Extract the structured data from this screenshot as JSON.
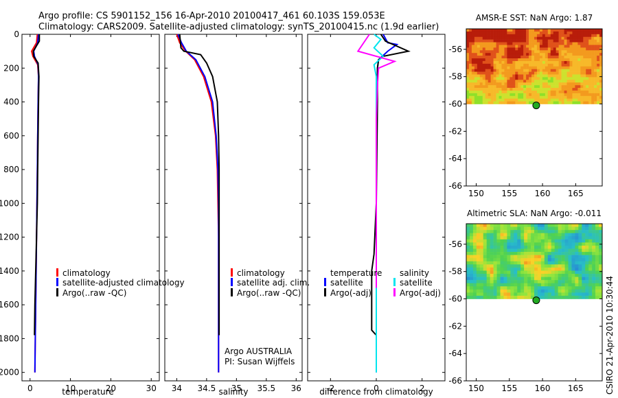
{
  "header": {
    "line1": "Argo profile: CS 5901152_156 16-Apr-2010 20100417_461 60.103S 159.053E",
    "line2": "Climatology: CARS2009. Satellite-adjusted climatology: synTS_20100415.nc (1.9d earlier)"
  },
  "side_stamp": "CSIRO 21-Apr-2010 10:30:44",
  "colors": {
    "climatology": "#ff0000",
    "satellite": "#0000ff",
    "argo": "#000000",
    "sal_satellite": "#00e5ee",
    "sal_argo": "#ff00ff"
  },
  "chart_data": [
    {
      "type": "line",
      "id": "temperature",
      "xlabel": "temperature",
      "ylabel": "",
      "xlim": [
        -2,
        32
      ],
      "ylim": [
        2050,
        0
      ],
      "y_reversed": true,
      "xticks": [
        0,
        10,
        20,
        30
      ],
      "xtick_labels": [
        "0",
        "10",
        "20",
        "30"
      ],
      "yticks": [
        0,
        200,
        400,
        600,
        800,
        1000,
        1200,
        1400,
        1600,
        1800,
        2000
      ],
      "ytick_labels": [
        "0",
        "200",
        "400",
        "600",
        "800",
        "1000",
        "1200",
        "1400",
        "1600",
        "1800",
        "2000"
      ],
      "legend": [
        "climatology",
        "satellite-adjusted climatology",
        "Argo(..raw -QC)"
      ],
      "series": [
        {
          "name": "climatology",
          "color": "#ff0000",
          "points": [
            [
              1.8,
              0
            ],
            [
              1.6,
              50
            ],
            [
              0.4,
              100
            ],
            [
              0.7,
              130
            ],
            [
              1.9,
              180
            ],
            [
              2.1,
              250
            ],
            [
              2.0,
              400
            ],
            [
              1.9,
              600
            ],
            [
              1.8,
              800
            ],
            [
              1.7,
              1000
            ],
            [
              1.6,
              1200
            ],
            [
              1.5,
              1400
            ],
            [
              1.4,
              1600
            ],
            [
              1.3,
              1800
            ],
            [
              1.2,
              2000
            ]
          ]
        },
        {
          "name": "satellite-adjusted climatology",
          "color": "#0000ff",
          "points": [
            [
              2.1,
              0
            ],
            [
              1.9,
              50
            ],
            [
              0.9,
              100
            ],
            [
              1.1,
              130
            ],
            [
              2.0,
              180
            ],
            [
              2.1,
              250
            ],
            [
              2.0,
              400
            ],
            [
              1.9,
              600
            ],
            [
              1.8,
              800
            ],
            [
              1.7,
              1000
            ],
            [
              1.6,
              1200
            ],
            [
              1.5,
              1400
            ],
            [
              1.4,
              1600
            ],
            [
              1.3,
              1800
            ],
            [
              1.2,
              2000
            ]
          ]
        },
        {
          "name": "Argo(..raw -QC)",
          "color": "#000000",
          "points": [
            [
              2.3,
              0
            ],
            [
              2.3,
              40
            ],
            [
              0.8,
              100
            ],
            [
              0.9,
              130
            ],
            [
              2.0,
              170
            ],
            [
              2.2,
              250
            ],
            [
              2.1,
              400
            ],
            [
              2.0,
              600
            ],
            [
              1.9,
              800
            ],
            [
              1.8,
              1000
            ],
            [
              1.6,
              1200
            ],
            [
              1.4,
              1400
            ],
            [
              1.2,
              1600
            ],
            [
              1.1,
              1780
            ]
          ]
        }
      ]
    },
    {
      "type": "line",
      "id": "salinity",
      "xlabel": "salinity",
      "ylabel": "",
      "xlim": [
        33.8,
        36.1
      ],
      "ylim": [
        2050,
        0
      ],
      "y_reversed": true,
      "xticks": [
        34,
        34.5,
        35,
        35.5,
        36
      ],
      "xtick_labels": [
        "34",
        "34.5",
        "35",
        "35.5",
        "36"
      ],
      "legend": [
        "climatology",
        "satellite adj. clim.",
        "Argo(..raw -QC)"
      ],
      "annotations": [
        "Argo AUSTRALIA",
        "PI: Susan Wijffels"
      ],
      "series": [
        {
          "name": "climatology",
          "color": "#ff0000",
          "points": [
            [
              34.0,
              0
            ],
            [
              34.05,
              50
            ],
            [
              34.15,
              100
            ],
            [
              34.3,
              150
            ],
            [
              34.45,
              250
            ],
            [
              34.58,
              400
            ],
            [
              34.65,
              600
            ],
            [
              34.68,
              800
            ],
            [
              34.69,
              1000
            ],
            [
              34.7,
              1200
            ],
            [
              34.7,
              1400
            ],
            [
              34.7,
              1600
            ],
            [
              34.7,
              1800
            ],
            [
              34.7,
              2000
            ]
          ]
        },
        {
          "name": "satellite adj. clim.",
          "color": "#0000ff",
          "points": [
            [
              34.02,
              0
            ],
            [
              34.08,
              50
            ],
            [
              34.16,
              100
            ],
            [
              34.32,
              150
            ],
            [
              34.47,
              250
            ],
            [
              34.6,
              400
            ],
            [
              34.66,
              600
            ],
            [
              34.69,
              800
            ],
            [
              34.7,
              1000
            ],
            [
              34.7,
              1200
            ],
            [
              34.7,
              1400
            ],
            [
              34.7,
              1600
            ],
            [
              34.7,
              1800
            ],
            [
              34.7,
              2000
            ]
          ]
        },
        {
          "name": "Argo(..raw -QC)",
          "color": "#000000",
          "points": [
            [
              34.05,
              0
            ],
            [
              34.07,
              80
            ],
            [
              34.12,
              100
            ],
            [
              34.4,
              120
            ],
            [
              34.5,
              170
            ],
            [
              34.6,
              250
            ],
            [
              34.68,
              400
            ],
            [
              34.7,
              600
            ],
            [
              34.71,
              800
            ],
            [
              34.71,
              1000
            ],
            [
              34.71,
              1200
            ],
            [
              34.71,
              1400
            ],
            [
              34.71,
              1600
            ],
            [
              34.71,
              1780
            ]
          ]
        }
      ]
    },
    {
      "type": "line",
      "id": "difference",
      "xlabel": "difference from climatology",
      "ylabel": "",
      "xlim": [
        -3,
        3
      ],
      "ylim": [
        2050,
        0
      ],
      "y_reversed": true,
      "xticks": [
        -2,
        0,
        2
      ],
      "xtick_labels": [
        "-2",
        "0",
        "2"
      ],
      "legend_groups": [
        {
          "title": "temperature",
          "entries": [
            "satellite",
            "Argo(-adj)"
          ]
        },
        {
          "title": "salinity",
          "entries": [
            "satellite",
            "Argo(-adj)"
          ]
        }
      ],
      "series": [
        {
          "name": "temperature satellite",
          "color": "#0000ff",
          "points": [
            [
              0.3,
              0
            ],
            [
              0.5,
              50
            ],
            [
              0.9,
              60
            ],
            [
              0.5,
              100
            ],
            [
              0.1,
              150
            ],
            [
              0.05,
              200
            ],
            [
              0.02,
              400
            ],
            [
              0,
              800
            ],
            [
              0,
              1200
            ],
            [
              0,
              1600
            ],
            [
              0,
              2000
            ]
          ]
        },
        {
          "name": "temperature Argo(-adj)",
          "color": "#000000",
          "points": [
            [
              0.2,
              0
            ],
            [
              0.4,
              40
            ],
            [
              1.4,
              100
            ],
            [
              0.3,
              130
            ],
            [
              0.1,
              150
            ],
            [
              0.05,
              200
            ],
            [
              0.05,
              400
            ],
            [
              0,
              1000
            ],
            [
              -0.1,
              1300
            ],
            [
              -0.2,
              1400
            ],
            [
              -0.2,
              1600
            ],
            [
              -0.2,
              1750
            ],
            [
              0,
              1780
            ]
          ]
        },
        {
          "name": "salinity satellite",
          "color": "#00e5ee",
          "points": [
            [
              -0.1,
              0
            ],
            [
              0.2,
              30
            ],
            [
              -0.1,
              80
            ],
            [
              0.3,
              130
            ],
            [
              -0.1,
              180
            ],
            [
              0,
              250
            ],
            [
              0,
              500
            ],
            [
              0,
              1000
            ],
            [
              0,
              1500
            ],
            [
              0,
              2000
            ]
          ]
        },
        {
          "name": "salinity Argo(-adj)",
          "color": "#ff00ff",
          "points": [
            [
              -0.3,
              0
            ],
            [
              -0.8,
              100
            ],
            [
              0.8,
              160
            ],
            [
              0.1,
              200
            ],
            [
              0.05,
              300
            ],
            [
              0,
              500
            ],
            [
              0,
              1000
            ],
            [
              0,
              1500
            ]
          ]
        }
      ]
    },
    {
      "type": "heatmap",
      "id": "sst_map",
      "title": "AMSR-E SST: NaN Argo: 1.87",
      "xlim": [
        148.5,
        169
      ],
      "ylim": [
        -66,
        -54.5
      ],
      "xticks": [
        150,
        155,
        160,
        165
      ],
      "xtick_labels": [
        "150",
        "155",
        "160",
        "165"
      ],
      "yticks": [
        -56,
        -58,
        -60,
        -62,
        -64,
        -66
      ],
      "ytick_labels": [
        "-56",
        "-58",
        "-60",
        "-62",
        "-64",
        "-66"
      ],
      "data_ylim": [
        -60,
        -54.5
      ],
      "marker": {
        "lon": 159.053,
        "lat": -60.103
      }
    },
    {
      "type": "heatmap",
      "id": "sla_map",
      "title": "Altimetric SLA: NaN Argo: -0.011",
      "xlim": [
        148.5,
        169
      ],
      "ylim": [
        -66,
        -54.5
      ],
      "xticks": [
        150,
        155,
        160,
        165
      ],
      "xtick_labels": [
        "150",
        "155",
        "160",
        "165"
      ],
      "yticks": [
        -56,
        -58,
        -60,
        -62,
        -64,
        -66
      ],
      "ytick_labels": [
        "-56",
        "-58",
        "-60",
        "-62",
        "-64",
        "-66"
      ],
      "data_ylim": [
        -60,
        -54.5
      ],
      "marker": {
        "lon": 159.053,
        "lat": -60.103
      }
    }
  ]
}
